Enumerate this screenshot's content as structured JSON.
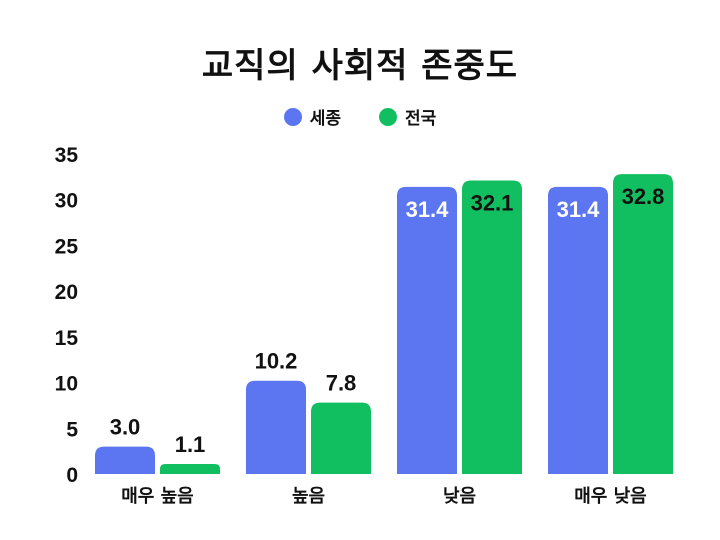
{
  "chart_data": {
    "type": "bar",
    "title": "교직의 사회적 존중도",
    "categories": [
      "매우 높음",
      "높음",
      "낮음",
      "매우 낮음"
    ],
    "series": [
      {
        "name": "세종",
        "values": [
          3.0,
          10.2,
          31.4,
          31.4
        ],
        "color": "#5b76f0"
      },
      {
        "name": "전국",
        "values": [
          1.1,
          7.8,
          32.1,
          32.8
        ],
        "color": "#12bf60"
      }
    ],
    "yticks": [
      "0",
      "5",
      "10",
      "15",
      "20",
      "25",
      "30",
      "35"
    ],
    "value_labels": [
      [
        "3.0",
        "10.2",
        "31.4",
        "31.4"
      ],
      [
        "1.1",
        "7.8",
        "32.1",
        "32.8"
      ]
    ],
    "ylim": [
      0,
      35
    ],
    "legend_position": "top-center",
    "grid": false
  }
}
